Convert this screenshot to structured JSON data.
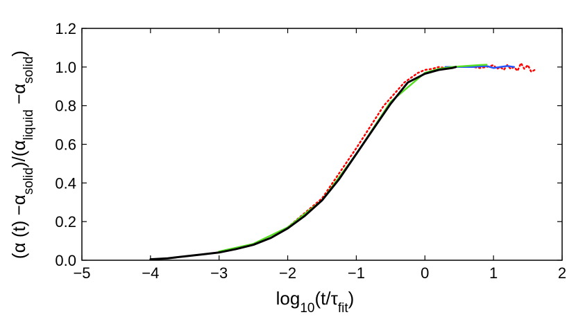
{
  "chart_data": {
    "type": "line",
    "title": "",
    "xlabel": {
      "parts": [
        {
          "text": "log",
          "shift": "base"
        },
        {
          "text": "10",
          "shift": "sub"
        },
        {
          "text": "(t/τ",
          "shift": "base"
        },
        {
          "text": "fit",
          "shift": "sub"
        },
        {
          "text": ")",
          "shift": "base"
        }
      ]
    },
    "ylabel": {
      "parts": [
        {
          "text": "(α (t) −α",
          "shift": "base"
        },
        {
          "text": "solid",
          "shift": "sub"
        },
        {
          "text": ")/(α",
          "shift": "base"
        },
        {
          "text": "liquid",
          "shift": "sub"
        },
        {
          "text": " −α",
          "shift": "base"
        },
        {
          "text": "solid",
          "shift": "sub"
        },
        {
          "text": ")",
          "shift": "base"
        }
      ]
    },
    "xlim": [
      -5,
      2
    ],
    "ylim": [
      0,
      1.2
    ],
    "xticks": [
      -5,
      -4,
      -3,
      -2,
      -1,
      0,
      1,
      2
    ],
    "xtick_labels": [
      "−5",
      "−4",
      "−3",
      "−2",
      "−1",
      "0",
      "1",
      "2"
    ],
    "yticks": [
      0,
      0.2,
      0.4,
      0.6,
      0.8,
      1.0,
      1.2
    ],
    "ytick_labels": [
      "0.0",
      "0.2",
      "0.4",
      "0.6",
      "0.8",
      "1.0",
      "1.2"
    ],
    "grid": false,
    "legend": "none",
    "series": [
      {
        "color": "#ff0000",
        "style": "dotted",
        "x": [
          -2.0,
          -1.5,
          -1.0,
          -0.6,
          -0.3,
          -0.1,
          0.0,
          0.1,
          0.2,
          0.3,
          0.4,
          0.5,
          0.6,
          0.7,
          0.8,
          0.9,
          1.0,
          1.05,
          1.1,
          1.15,
          1.2,
          1.25,
          1.3,
          1.35,
          1.4,
          1.45,
          1.5,
          1.55,
          1.6
        ],
        "y": [
          0.17,
          0.32,
          0.58,
          0.8,
          0.92,
          0.97,
          0.985,
          0.99,
          1.0,
          0.995,
          1.0,
          1.0,
          1.0,
          1.0,
          0.995,
          1.0,
          1.01,
          0.99,
          1.0,
          0.985,
          1.01,
          0.99,
          1.0,
          0.98,
          1.02,
          0.99,
          1.01,
          0.975,
          0.985
        ]
      },
      {
        "color": "#2255ff",
        "style": "solid",
        "x": [
          0.3,
          0.5,
          0.7,
          0.9,
          1.0,
          1.1,
          1.2,
          1.3
        ],
        "y": [
          1.0,
          1.0,
          1.0,
          1.005,
          0.995,
          1.0,
          1.005,
          1.0
        ]
      },
      {
        "color": "#55dd22",
        "style": "solid",
        "x": [
          -3.0,
          -2.5,
          -2.0,
          -1.5,
          -1.0,
          -0.5,
          0.0,
          0.2,
          0.4,
          0.6,
          0.8,
          0.9
        ],
        "y": [
          0.045,
          0.085,
          0.17,
          0.31,
          0.55,
          0.82,
          0.97,
          0.99,
          1.0,
          1.005,
          1.01,
          1.012
        ]
      },
      {
        "color": "#000000",
        "style": "solid",
        "x": [
          -4.0,
          -3.75,
          -3.5,
          -3.25,
          -3.0,
          -2.75,
          -2.5,
          -2.25,
          -2.0,
          -1.75,
          -1.5,
          -1.25,
          -1.0,
          -0.75,
          -0.5,
          -0.25,
          0.0,
          0.2,
          0.4,
          0.45
        ],
        "y": [
          0.005,
          0.01,
          0.02,
          0.03,
          0.04,
          0.058,
          0.08,
          0.115,
          0.165,
          0.23,
          0.31,
          0.42,
          0.55,
          0.68,
          0.81,
          0.92,
          0.965,
          0.985,
          0.995,
          1.0
        ]
      }
    ]
  }
}
